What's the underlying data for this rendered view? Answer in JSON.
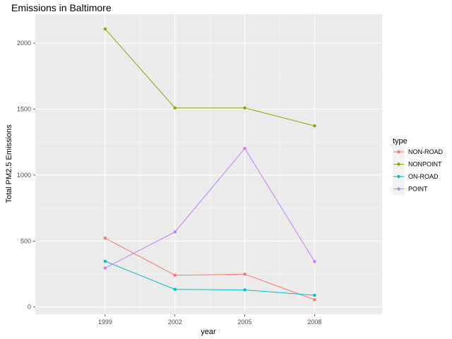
{
  "chart_data": {
    "type": "line",
    "title": "Emissions in Baltimore",
    "xlabel": "year",
    "ylabel": "Total PM2.5 Emissions",
    "x": [
      1999,
      2002,
      2005,
      2008
    ],
    "xlim": [
      1996,
      2010.9
    ],
    "ylim": [
      -55,
      2220
    ],
    "yticks": [
      0,
      500,
      1000,
      1500,
      2000
    ],
    "grid": true,
    "legend": {
      "title": "type",
      "position": "right"
    },
    "series": [
      {
        "name": "NON-ROAD",
        "color": "#F8766D",
        "values": [
          522,
          241,
          249,
          55
        ]
      },
      {
        "name": "NONPOINT",
        "color": "#7CAE00",
        "values": [
          2108,
          1509,
          1509,
          1373
        ]
      },
      {
        "name": "ON-ROAD",
        "color": "#00BFC4",
        "values": [
          347,
          134,
          130,
          89
        ]
      },
      {
        "name": "POINT",
        "color": "#C77CFF",
        "values": [
          296,
          569,
          1202,
          345
        ]
      }
    ]
  }
}
